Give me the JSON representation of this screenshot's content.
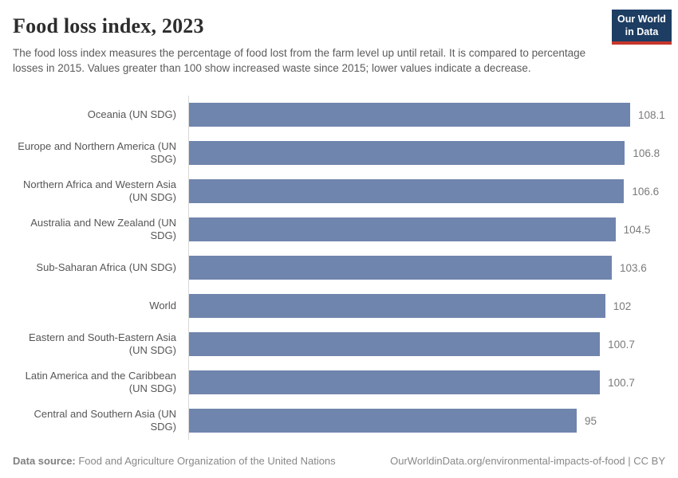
{
  "header": {
    "title": "Food loss index, 2023",
    "subtitle": "The food loss index measures the percentage of food lost from the farm level up until retail. It is compared to percentage losses in 2015. Values greater than 100 show increased waste since 2015; lower values indicate a decrease.",
    "logo": {
      "line1": "Our World",
      "line2": "in Data",
      "bg_color": "#1d3d63",
      "accent_color": "#c5372c"
    }
  },
  "chart_data": {
    "type": "bar",
    "orientation": "horizontal",
    "title": "Food loss index, 2023",
    "xlabel": "",
    "ylabel": "",
    "xlim": [
      0,
      110
    ],
    "grid": false,
    "legend": "none",
    "bar_color": "#7085ad",
    "categories": [
      "Oceania (UN SDG)",
      "Europe and Northern America (UN SDG)",
      "Northern Africa and Western Asia (UN SDG)",
      "Australia and New Zealand (UN SDG)",
      "Sub-Saharan Africa (UN SDG)",
      "World",
      "Eastern and South-Eastern Asia (UN SDG)",
      "Latin America and the Caribbean (UN SDG)",
      "Central and Southern Asia (UN SDG)"
    ],
    "values": [
      108.1,
      106.8,
      106.6,
      104.5,
      103.6,
      102,
      100.7,
      100.7,
      95
    ],
    "value_labels": [
      "108.1",
      "106.8",
      "106.6",
      "104.5",
      "103.6",
      "102",
      "100.7",
      "100.7",
      "95"
    ]
  },
  "footer": {
    "datasource_label": "Data source:",
    "datasource_value": " Food and Agriculture Organization of the United Nations",
    "link": "OurWorldinData.org/environmental-impacts-of-food | CC BY"
  }
}
